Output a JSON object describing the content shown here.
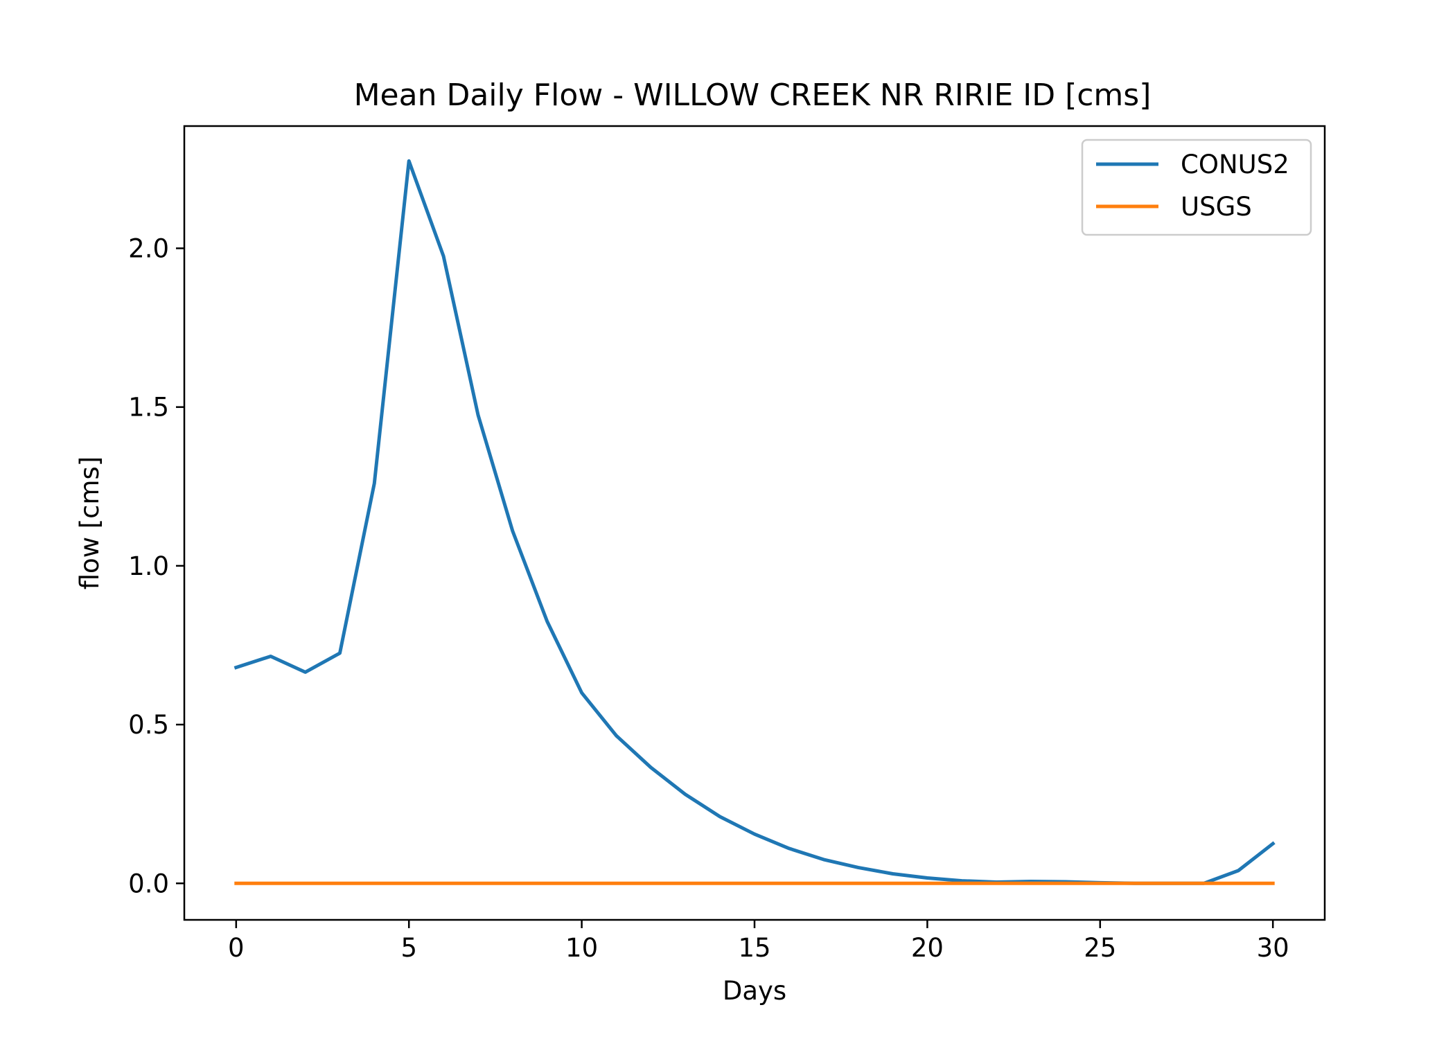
{
  "chart_data": {
    "type": "line",
    "title": "Mean Daily Flow - WILLOW CREEK NR RIRIE ID [cms]",
    "xlabel": "Days",
    "ylabel": "flow [cms]",
    "xlim": [
      -1.5,
      31.5
    ],
    "ylim": [
      -0.115,
      2.385
    ],
    "xticks": [
      0,
      5,
      10,
      15,
      20,
      25,
      30
    ],
    "xtick_labels": [
      "0",
      "5",
      "10",
      "15",
      "20",
      "25",
      "30"
    ],
    "yticks": [
      0.0,
      0.5,
      1.0,
      1.5,
      2.0
    ],
    "ytick_labels": [
      "0.0",
      "0.5",
      "1.0",
      "1.5",
      "2.0"
    ],
    "grid": false,
    "legend_position": "upper right",
    "x": [
      0,
      1,
      2,
      3,
      4,
      5,
      6,
      7,
      8,
      9,
      10,
      11,
      12,
      13,
      14,
      15,
      16,
      17,
      18,
      19,
      20,
      21,
      22,
      23,
      24,
      25,
      26,
      27,
      28,
      29,
      30
    ],
    "series": [
      {
        "name": "CONUS2",
        "color": "#1f77b4",
        "values": [
          0.68,
          0.715,
          0.665,
          0.725,
          1.26,
          2.275,
          1.975,
          1.475,
          1.11,
          0.825,
          0.6,
          0.465,
          0.365,
          0.28,
          0.21,
          0.155,
          0.11,
          0.075,
          0.05,
          0.03,
          0.017,
          0.008,
          0.004,
          0.006,
          0.005,
          0.002,
          0.0,
          0.0,
          0.0,
          0.04,
          0.125
        ]
      },
      {
        "name": "USGS",
        "color": "#ff7f0e",
        "values": [
          0,
          0,
          0,
          0,
          0,
          0,
          0,
          0,
          0,
          0,
          0,
          0,
          0,
          0,
          0,
          0,
          0,
          0,
          0,
          0,
          0,
          0,
          0,
          0,
          0,
          0,
          0,
          0,
          0,
          0,
          0
        ]
      }
    ]
  }
}
